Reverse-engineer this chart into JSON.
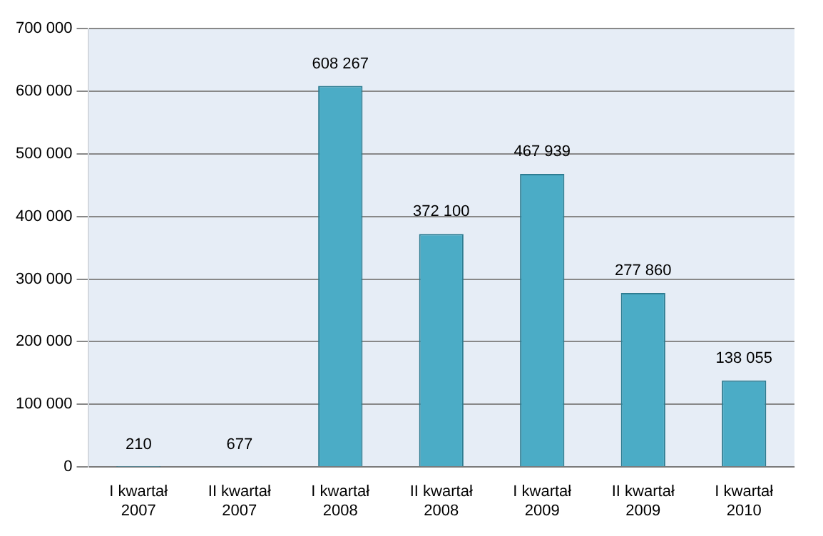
{
  "chart_data": {
    "type": "bar",
    "categories": [
      "I kwartał 2007",
      "II kwartał 2007",
      "I kwartał 2008",
      "II kwartał 2008",
      "I kwartał 2009",
      "II kwartał 2009",
      "I kwartał 2010"
    ],
    "values": [
      210,
      677,
      608267,
      372100,
      467939,
      277860,
      138055
    ],
    "value_labels": [
      "210",
      "677",
      "608 267",
      "372 100",
      "467 939",
      "277 860",
      "138 055"
    ],
    "color": "#4bacc6",
    "ylim": [
      0,
      700000
    ],
    "yticks": [
      {
        "value": 0,
        "label": "0"
      },
      {
        "value": 100000,
        "label": "100 000"
      },
      {
        "value": 200000,
        "label": "200 000"
      },
      {
        "value": 300000,
        "label": "300 000"
      },
      {
        "value": 400000,
        "label": "400 000"
      },
      {
        "value": 500000,
        "label": "500 000"
      },
      {
        "value": 600000,
        "label": "600 000"
      },
      {
        "value": 700000,
        "label": "700 000"
      }
    ],
    "grid": "y",
    "legend": false
  }
}
